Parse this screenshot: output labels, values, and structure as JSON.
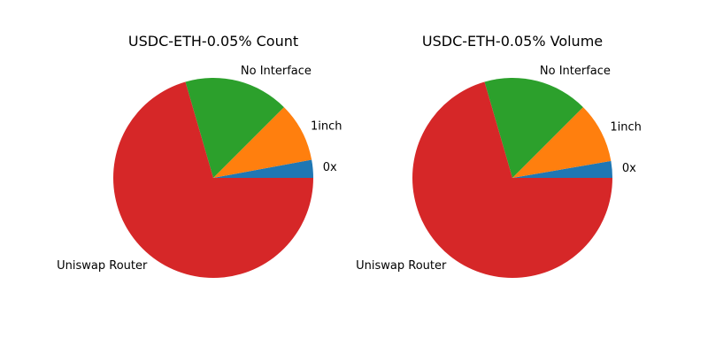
{
  "chart_data": [
    {
      "type": "pie",
      "title": "USDC-ETH-0.05% Count",
      "start_angle_deg": 0,
      "direction": "counterclockwise",
      "slices": [
        {
          "label": "0x",
          "value": 2.9,
          "color": "#1f77b4"
        },
        {
          "label": "1inch",
          "value": 9.6,
          "color": "#ff7f0e"
        },
        {
          "label": "No Interface",
          "value": 17.0,
          "color": "#2ca02c"
        },
        {
          "label": "Uniswap Router",
          "value": 70.5,
          "color": "#d62728"
        }
      ]
    },
    {
      "type": "pie",
      "title": "USDC-ETH-0.05% Volume",
      "start_angle_deg": 0,
      "direction": "counterclockwise",
      "slices": [
        {
          "label": "0x",
          "value": 2.7,
          "color": "#1f77b4"
        },
        {
          "label": "1inch",
          "value": 9.8,
          "color": "#ff7f0e"
        },
        {
          "label": "No Interface",
          "value": 17.0,
          "color": "#2ca02c"
        },
        {
          "label": "Uniswap Router",
          "value": 70.5,
          "color": "#d62728"
        }
      ]
    }
  ]
}
